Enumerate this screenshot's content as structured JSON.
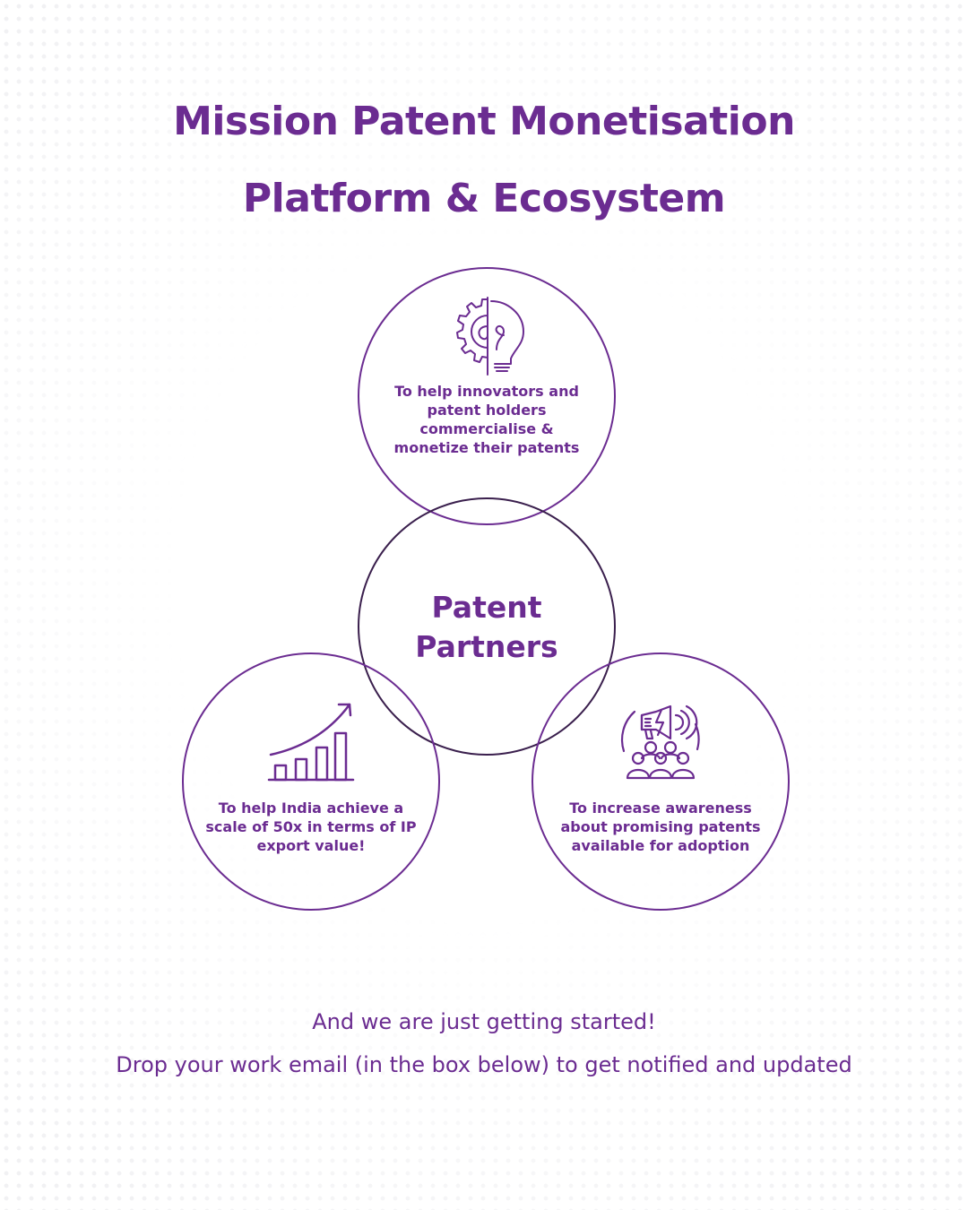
{
  "colors": {
    "accent": "#6b2c91",
    "circle_stroke": "#6b2c91",
    "center_stroke": "#3a1f4d"
  },
  "title": {
    "line1": "Mission Patent Monetisation",
    "line2": "Platform & Ecosystem"
  },
  "center": {
    "label": "Patent\nPartners"
  },
  "circles": [
    {
      "id": "top",
      "icon": "gear-lightbulb-icon",
      "text": "To help innovators and\npatent holders\ncommercialise &\nmonetize their patents"
    },
    {
      "id": "left",
      "icon": "growth-chart-icon",
      "text": "To help India achieve a\nscale of 50x in terms of IP\nexport value!"
    },
    {
      "id": "right",
      "icon": "megaphone-audience-icon",
      "text": "To increase awareness\nabout promising patents\navailable for adoption"
    }
  ],
  "footer": {
    "line1": "And we are just getting started!",
    "line2": "Drop your work email (in the box below) to get notified and updated"
  }
}
